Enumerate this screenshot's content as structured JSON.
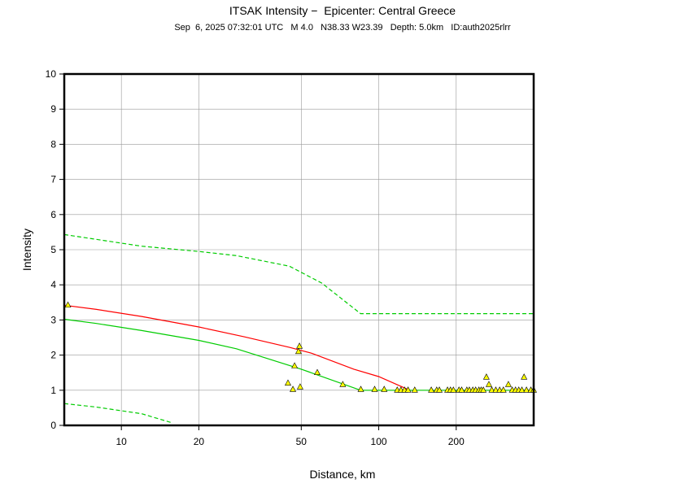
{
  "chart_data": {
    "type": "line",
    "title": "ITSAK Intensity −  Epicenter: Central Greece",
    "subtitle": "Sep  6, 2025 07:32:01 UTC   M 4.0   N38.33 W23.39   Depth: 5.0km   ID:auth2025rlrr",
    "xlabel": "Distance, km",
    "ylabel": "Intensity",
    "xscale": "log",
    "xlim": [
      6,
      400
    ],
    "ylim": [
      0,
      10
    ],
    "xticks": [
      10,
      20,
      50,
      100,
      200
    ],
    "yticks": [
      0,
      1,
      2,
      3,
      4,
      5,
      6,
      7,
      8,
      9,
      10
    ],
    "grid": true,
    "series": [
      {
        "kind": "line",
        "color": "#ff0000",
        "dashed": false,
        "x": [
          6,
          8,
          12,
          20,
          30,
          45,
          55,
          80,
          100,
          132
        ],
        "values": [
          3.42,
          3.3,
          3.1,
          2.8,
          2.52,
          2.22,
          2.05,
          1.6,
          1.39,
          1.0
        ]
      },
      {
        "kind": "line",
        "color": "#00cc00",
        "dashed": false,
        "x": [
          6,
          8,
          12,
          20,
          28,
          50,
          85,
          400
        ],
        "values": [
          3.02,
          2.9,
          2.7,
          2.42,
          2.18,
          1.6,
          1.0,
          1.0
        ]
      },
      {
        "kind": "line",
        "color": "#00cc00",
        "dashed": true,
        "x": [
          6,
          12,
          20,
          28,
          45,
          60,
          85,
          400
        ],
        "values": [
          5.43,
          5.1,
          4.95,
          4.83,
          4.53,
          4.05,
          3.18,
          3.18
        ]
      },
      {
        "kind": "line",
        "color": "#00cc00",
        "dashed": true,
        "x": [
          6,
          8,
          12,
          15.8
        ],
        "values": [
          0.62,
          0.52,
          0.33,
          0.07
        ]
      },
      {
        "kind": "scatter",
        "color": "#ffff00",
        "x": [
          6.2,
          44.4,
          46.4,
          47.1,
          49.2,
          48.8,
          49.5,
          57.7,
          72.5,
          85.2,
          96.4,
          105,
          118,
          122,
          126,
          130,
          138,
          160,
          168,
          172,
          185,
          190,
          195,
          205,
          210,
          220,
          225,
          232,
          238,
          245,
          250,
          255,
          262,
          268,
          275,
          285,
          295,
          305,
          319,
          330,
          340,
          350,
          360,
          367,
          375,
          390,
          400
        ],
        "values": [
          3.42,
          1.2,
          1.02,
          1.69,
          2.25,
          2.1,
          1.09,
          1.5,
          1.16,
          1.02,
          1.02,
          1.02,
          1.0,
          1.0,
          1.0,
          1.0,
          1.0,
          1.0,
          1.0,
          1.0,
          1.0,
          1.0,
          1.0,
          1.0,
          1.0,
          1.0,
          1.0,
          1.0,
          1.0,
          1.0,
          1.0,
          1.0,
          1.37,
          1.16,
          1.0,
          1.0,
          1.0,
          1.0,
          1.16,
          1.0,
          1.0,
          1.0,
          1.0,
          1.37,
          1.0,
          1.0,
          1.0
        ]
      }
    ]
  }
}
